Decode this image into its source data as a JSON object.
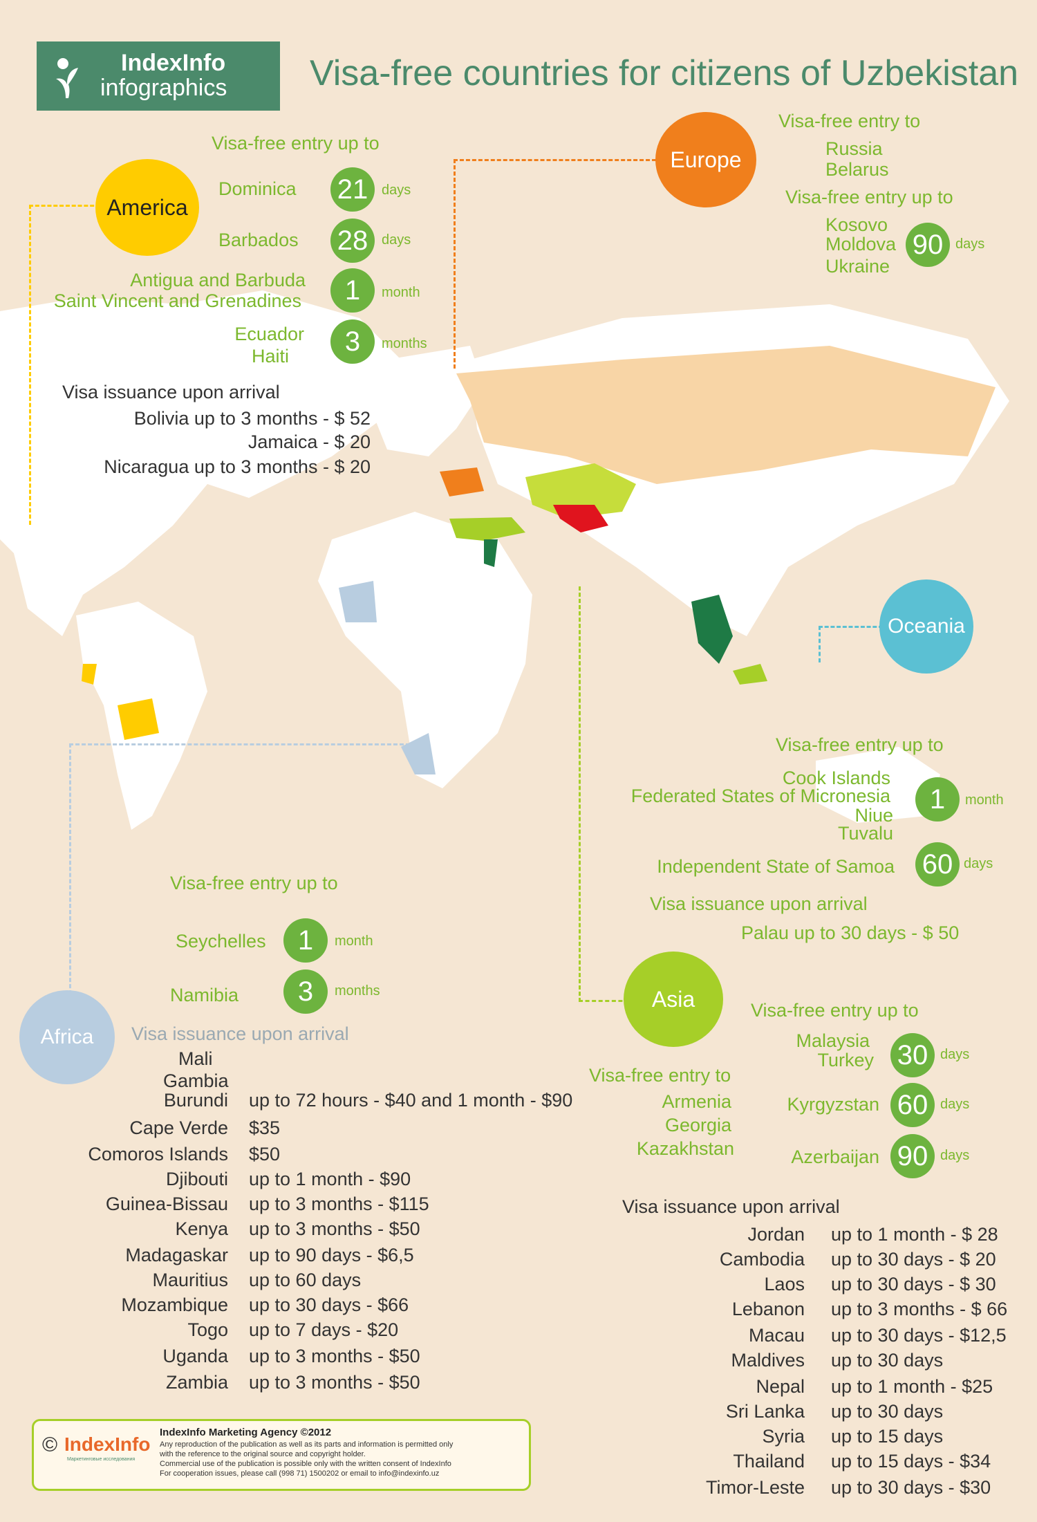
{
  "brand": {
    "name": "IndexInfo",
    "sub": "infographics"
  },
  "title": "Visa-free countries for citizens of Uzbekistan",
  "colors": {
    "america": "#ffcc00",
    "europe": "#f07f1c",
    "asia": "#a6cf28",
    "africa": "#b8cde0",
    "oceania": "#5bc0d3",
    "badge": "#6db33f",
    "brand_bg": "#4b8a6b"
  },
  "america": {
    "label": "America",
    "heading": "Visa-free entry up to",
    "groups": [
      {
        "countries": "Dominica",
        "value": "21",
        "unit": "days"
      },
      {
        "countries": "Barbados",
        "value": "28",
        "unit": "days"
      },
      {
        "countries": "Antigua and Barbuda",
        "countries2": "Saint Vincent and Grenadines",
        "value": "1",
        "unit": "month"
      },
      {
        "countries": "Ecuador",
        "countries2": "Haiti",
        "value": "3",
        "unit": "months"
      }
    ],
    "arrival_heading": "Visa issuance upon arrival",
    "arrival": [
      "Bolivia up to 3 months - $ 52",
      "Jamaica - $ 20",
      "Nicaragua up to 3 months  - $ 20"
    ]
  },
  "europe": {
    "label": "Europe",
    "heading1": "Visa-free entry to",
    "free": [
      "Russia",
      "Belarus"
    ],
    "heading2": "Visa-free entry up to",
    "limited": [
      "Kosovo",
      "Moldova",
      "Ukraine"
    ],
    "value": "90",
    "unit": "days"
  },
  "oceania": {
    "label": "Oceania",
    "heading": "Visa-free entry up to",
    "group1": [
      "Cook Islands",
      "Federated States of Micronesia",
      "Niue",
      "Tuvalu"
    ],
    "value1": "1",
    "unit1": "month",
    "group2": "Independent State of Samoa",
    "value2": "60",
    "unit2": "days",
    "arrival_heading": "Visa issuance upon arrival",
    "arrival": "Palau  up to 30 days  - $ 50"
  },
  "africa": {
    "label": "Africa",
    "heading": "Visa-free entry up to",
    "groups": [
      {
        "country": "Seychelles",
        "value": "1",
        "unit": "month"
      },
      {
        "country": "Namibia",
        "value": "3",
        "unit": "months"
      }
    ],
    "arrival_heading": "Visa issuance upon arrival",
    "arrival": [
      {
        "country": "Mali",
        "terms": ""
      },
      {
        "country": "Gambia",
        "terms": ""
      },
      {
        "country": "Burundi",
        "terms": "up to  72 hours - $40  and 1 month - $90"
      },
      {
        "country": "Cape Verde",
        "terms": "$35"
      },
      {
        "country": "Comoros Islands",
        "terms": "$50"
      },
      {
        "country": "Djibouti",
        "terms": "up to 1 month - $90"
      },
      {
        "country": "Guinea-Bissau",
        "terms": "up to 3 months - $115"
      },
      {
        "country": "Kenya",
        "terms": "up to 3 months - $50"
      },
      {
        "country": "Madagaskar",
        "terms": "up to 90 days - $6,5"
      },
      {
        "country": "Mauritius",
        "terms": "up to 60 days"
      },
      {
        "country": "Mozambique",
        "terms": "up to 30 days - $66"
      },
      {
        "country": "Togo",
        "terms": "up to 7 days  - $20"
      },
      {
        "country": "Uganda",
        "terms": "up to 3 months - $50"
      },
      {
        "country": "Zambia",
        "terms": "up to 3 months - $50"
      }
    ]
  },
  "asia": {
    "label": "Asia",
    "free_heading": "Visa-free entry to",
    "free": [
      "Armenia",
      "Georgia",
      "Kazakhstan"
    ],
    "heading": "Visa-free entry up to",
    "groups": [
      {
        "countries": "Malaysia",
        "countries2": "Turkey",
        "value": "30",
        "unit": "days"
      },
      {
        "countries": "Kyrgyzstan",
        "value": "60",
        "unit": "days"
      },
      {
        "countries": "Azerbaijan",
        "value": "90",
        "unit": "days"
      }
    ],
    "arrival_heading": "Visa issuance upon arrival",
    "arrival": [
      {
        "country": "Jordan",
        "terms": "up to 1 month -  $ 28"
      },
      {
        "country": "Cambodia",
        "terms": "up to 30 days  -  $ 20"
      },
      {
        "country": "Laos",
        "terms": "up to  30 days  - $ 30"
      },
      {
        "country": "Lebanon",
        "terms": "up to 3 months - $ 66"
      },
      {
        "country": "Macau",
        "terms": "up to 30 days - $12,5"
      },
      {
        "country": "Maldives",
        "terms": "up to 30 days"
      },
      {
        "country": "Nepal",
        "terms": "up to 1 month -  $25"
      },
      {
        "country": "Sri Lanka",
        "terms": "up to 30 days"
      },
      {
        "country": "Syria",
        "terms": "up to 15 days"
      },
      {
        "country": "Thailand",
        "terms": "up to 15 days -   $34"
      },
      {
        "country": "Timor-Leste",
        "terms": "up to 30 days -   $30"
      }
    ]
  },
  "footer": {
    "logo": "IndexInfo",
    "logo_sub": "Маркетинговые исследования",
    "agency": "IndexInfo Marketing Agency ©2012",
    "line1": "Any reproduction of the publication as well as its parts and information is permitted only",
    "line2": "with the reference to the original source and copyright holder.",
    "line3": "Commercial use of the publication is possible only with the written consent of IndexInfo",
    "line4": "For cooperation issues, please call (998 71) 1500202 or email to info@indexinfo.uz"
  }
}
